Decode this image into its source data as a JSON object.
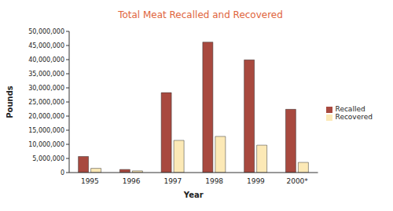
{
  "chart_data": {
    "type": "bar",
    "title": "Total Meat Recalled and Recovered",
    "x_label": "Year",
    "y_label": "Pounds",
    "categories": [
      "1995",
      "1996",
      "1997",
      "1998",
      "1999",
      "2000*"
    ],
    "series": [
      {
        "name": "Recalled",
        "color": "#a8493f",
        "values": [
          5700000,
          1100000,
          28300000,
          46200000,
          39900000,
          22400000
        ]
      },
      {
        "name": "Recovered",
        "color": "#fce9b6",
        "values": [
          1500000,
          600000,
          11400000,
          12800000,
          9700000,
          3600000
        ]
      }
    ],
    "ylim": [
      0,
      50000000
    ],
    "yticks": [
      0,
      {
        "value": 5000000,
        "label": "5,000,000"
      },
      {
        "value": 10000000,
        "label": "10,000,000"
      },
      {
        "value": 15000000,
        "label": "15,000,000"
      },
      {
        "value": 20000000,
        "label": "20,000,000"
      },
      {
        "value": 25000000,
        "label": "25,000,000"
      },
      {
        "value": 30000000,
        "label": "30,000,000"
      },
      {
        "value": 35000000,
        "label": "35,000,000"
      },
      {
        "value": 40000000,
        "label": "40,000,000"
      },
      {
        "value": 45000000,
        "label": "45,000,000"
      },
      {
        "value": 50000000,
        "label": "50,000,000"
      }
    ],
    "grid": false,
    "legend": "right"
  }
}
